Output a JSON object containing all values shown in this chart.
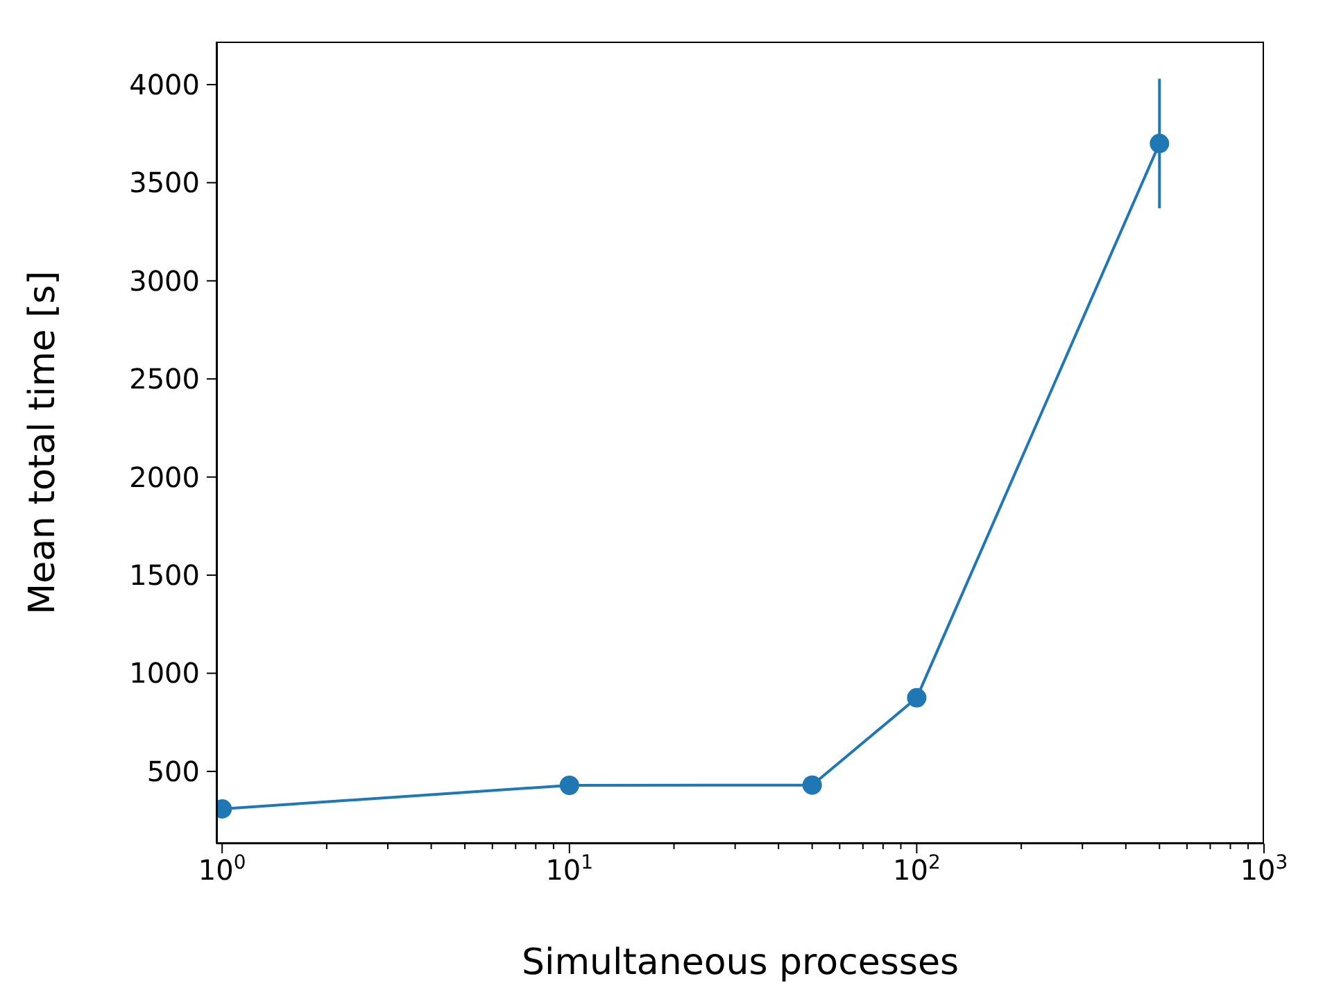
{
  "chart_data": {
    "type": "line",
    "xlabel": "Simultaneous processes",
    "ylabel": "Mean total time [s]",
    "log": "x",
    "marker": "circle",
    "line_style": "solid",
    "grid": false,
    "legend": false,
    "x": [
      1,
      10,
      50,
      100,
      500
    ],
    "series": [
      {
        "color": "#1f77b4",
        "values": [
          309,
          429,
          430,
          875,
          3700
        ],
        "errors": [
          null,
          null,
          null,
          null,
          330
        ]
      }
    ],
    "xlim": [
      0.963,
      1000
    ],
    "ylim": [
      132,
      4219
    ],
    "xticks": [
      {
        "value": 1,
        "label": "10$^{0}$"
      },
      {
        "value": 2,
        "label": null
      },
      {
        "value": 3,
        "label": null
      },
      {
        "value": 4,
        "label": null
      },
      {
        "value": 5,
        "label": null
      },
      {
        "value": 6,
        "label": null
      },
      {
        "value": 7,
        "label": null
      },
      {
        "value": 8,
        "label": null
      },
      {
        "value": 9,
        "label": null
      },
      {
        "value": 10,
        "label": "10$^{1}$"
      },
      {
        "value": 20,
        "label": null
      },
      {
        "value": 30,
        "label": null
      },
      {
        "value": 40,
        "label": null
      },
      {
        "value": 50,
        "label": null
      },
      {
        "value": 60,
        "label": null
      },
      {
        "value": 70,
        "label": null
      },
      {
        "value": 80,
        "label": null
      },
      {
        "value": 90,
        "label": null
      },
      {
        "value": 100,
        "label": "10$^{2}$"
      },
      {
        "value": 200,
        "label": null
      },
      {
        "value": 300,
        "label": null
      },
      {
        "value": 400,
        "label": null
      },
      {
        "value": 500,
        "label": null
      },
      {
        "value": 600,
        "label": null
      },
      {
        "value": 700,
        "label": null
      },
      {
        "value": 800,
        "label": null
      },
      {
        "value": 900,
        "label": null
      },
      {
        "value": 1000,
        "label": "10$^{3}$"
      }
    ],
    "yticks": [
      500,
      1000,
      1500,
      2000,
      2500,
      3000,
      3500,
      4000
    ]
  }
}
